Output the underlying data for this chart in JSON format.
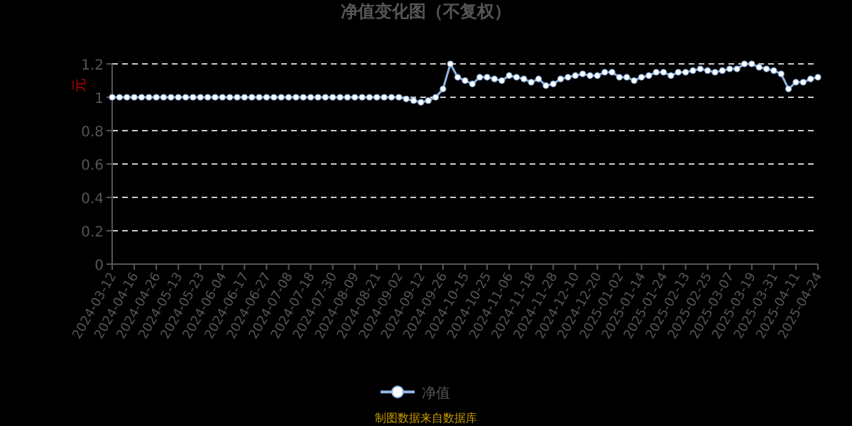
{
  "chart_data": {
    "type": "line",
    "title": "净值变化图（不复权）",
    "ylabel": "元",
    "categories": [
      "2024-03-12",
      null,
      null,
      "2024-04-16",
      null,
      null,
      "2024-04-26",
      null,
      null,
      "2024-05-13",
      null,
      null,
      "2024-05-23",
      null,
      null,
      "2024-06-04",
      null,
      null,
      "2024-06-17",
      null,
      null,
      "2024-06-27",
      null,
      null,
      "2024-07-08",
      null,
      null,
      "2024-07-18",
      null,
      null,
      "2024-07-30",
      null,
      null,
      "2024-08-09",
      null,
      null,
      "2024-08-21",
      null,
      null,
      "2024-09-02",
      null,
      null,
      "2024-09-12",
      null,
      null,
      "2024-09-26",
      null,
      null,
      "2024-10-15",
      null,
      null,
      "2024-10-25",
      null,
      null,
      "2024-11-06",
      null,
      null,
      "2024-11-18",
      null,
      null,
      "2024-11-28",
      null,
      null,
      "2024-12-10",
      null,
      null,
      "2024-12-20",
      null,
      null,
      "2025-01-02",
      null,
      null,
      "2025-01-14",
      null,
      null,
      "2025-01-24",
      null,
      null,
      "2025-02-13",
      null,
      null,
      "2025-02-25",
      null,
      null,
      "2025-03-07",
      null,
      null,
      "2025-03-19",
      null,
      null,
      "2025-03-31",
      null,
      null,
      "2025-04-11",
      null,
      null,
      "2025-04-24"
    ],
    "series": [
      {
        "name": "净值",
        "color": "#8db4e2",
        "values": [
          1.0,
          1.0,
          1.0,
          1.0,
          1.0,
          1.0,
          1.0,
          1.0,
          1.0,
          1.0,
          1.0,
          1.0,
          1.0,
          1.0,
          1.0,
          1.0,
          1.0,
          1.0,
          1.0,
          1.0,
          1.0,
          1.0,
          1.0,
          1.0,
          1.0,
          1.0,
          1.0,
          1.0,
          1.0,
          1.0,
          1.0,
          1.0,
          1.0,
          1.0,
          1.0,
          1.0,
          1.0,
          1.0,
          1.0,
          1.0,
          0.99,
          0.98,
          0.97,
          0.98,
          1.0,
          1.05,
          1.2,
          1.12,
          1.1,
          1.08,
          1.12,
          1.12,
          1.11,
          1.1,
          1.13,
          1.12,
          1.11,
          1.09,
          1.11,
          1.07,
          1.08,
          1.11,
          1.12,
          1.13,
          1.14,
          1.13,
          1.13,
          1.15,
          1.15,
          1.12,
          1.12,
          1.1,
          1.12,
          1.13,
          1.15,
          1.15,
          1.13,
          1.15,
          1.15,
          1.16,
          1.17,
          1.16,
          1.15,
          1.16,
          1.17,
          1.17,
          1.2,
          1.2,
          1.18,
          1.17,
          1.16,
          1.14,
          1.05,
          1.09,
          1.09,
          1.11,
          1.12
        ]
      }
    ],
    "ylim": [
      0,
      1.2
    ],
    "yticks": [
      0,
      0.2,
      0.4,
      0.6,
      0.8,
      1,
      1.2
    ],
    "grid": "y",
    "legend": "bottom",
    "marker": "circle",
    "line_style": "solid",
    "annotations": [
      "制图数据来自数据库"
    ]
  }
}
